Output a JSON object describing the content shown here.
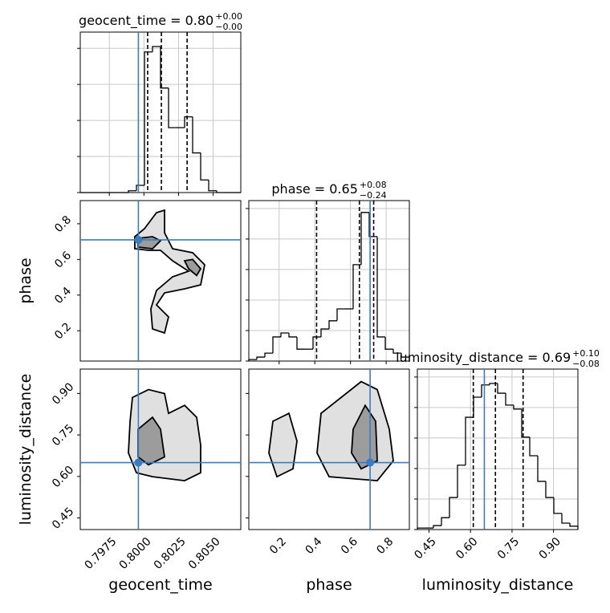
{
  "chart_data": {
    "type": "corner",
    "truth_color": "#3b7bbf",
    "hist_grid": true,
    "parameters": [
      {
        "name": "geocent_time",
        "title": "geocent_time = 0.80",
        "upper": "+0.00",
        "lower": "−0.00",
        "range": [
          0.7954,
          0.807
        ],
        "ticks": [
          0.7975,
          {
            "value": 0.8,
            "label": "0.8000"
          },
          0.8025,
          {
            "value": 0.805,
            "label": "0.8050"
          }
        ],
        "truth": 0.7996,
        "quantiles": [
          0.80027,
          0.80126,
          0.80312
        ],
        "bins": [
          0.7954,
          0.79598,
          0.79656,
          0.79714,
          0.79772,
          0.7983,
          0.79888,
          0.79946,
          0.80004,
          0.80062,
          0.8012,
          0.80178,
          0.80236,
          0.80294,
          0.80352,
          0.8041,
          0.80468,
          0.80526,
          0.80584,
          0.80642,
          0.807
        ],
        "counts": [
          0,
          0,
          0,
          0,
          0,
          0,
          0.05,
          0.2,
          3.9,
          4.05,
          2.9,
          1.8,
          1.8,
          2.1,
          1.1,
          0.35,
          0.05,
          0,
          0,
          0
        ],
        "hist_ylim": [
          0,
          4.45
        ],
        "hist_yticks": [
          0,
          1,
          2,
          3,
          4
        ]
      },
      {
        "name": "phase",
        "title": "phase = 0.65",
        "upper": "+0.08",
        "lower": "−0.24",
        "range": [
          0.03,
          0.93
        ],
        "ticks": [
          0.2,
          0.4,
          0.6,
          0.8
        ],
        "truth": 0.71,
        "quantiles": [
          0.41,
          0.65,
          0.73
        ],
        "bins": [
          0.03,
          0.075,
          0.12,
          0.165,
          0.21,
          0.255,
          0.3,
          0.345,
          0.39,
          0.435,
          0.48,
          0.525,
          0.57,
          0.615,
          0.66,
          0.705,
          0.75,
          0.795,
          0.84,
          0.885,
          0.93
        ],
        "counts": [
          0.05,
          0.13,
          0.26,
          0.79,
          0.92,
          0.79,
          0.39,
          0.39,
          0.79,
          1.05,
          1.32,
          1.71,
          1.71,
          3.16,
          4.87,
          4.08,
          0.79,
          0.39,
          0.26,
          0.13
        ],
        "hist_ylim": [
          0,
          5.26
        ],
        "hist_yticks": [
          0,
          1,
          2,
          3,
          4,
          5
        ]
      },
      {
        "name": "luminosity_distance",
        "title": "luminosity_distance = 0.69",
        "upper": "+0.10",
        "lower": "−0.08",
        "range": [
          0.408,
          0.988
        ],
        "ticks": [
          0.45,
          {
            "value": 0.6,
            "label": "0.60"
          },
          0.75,
          {
            "value": 0.9,
            "label": "0.90"
          }
        ],
        "truth": 0.65,
        "quantiles": [
          0.61,
          0.69,
          0.79
        ],
        "bins": [
          0.408,
          0.437,
          0.466,
          0.495,
          0.524,
          0.553,
          0.582,
          0.611,
          0.64,
          0.669,
          0.698,
          0.727,
          0.756,
          0.785,
          0.814,
          0.843,
          0.872,
          0.901,
          0.93,
          0.959,
          0.988
        ],
        "counts": [
          0.05,
          0.05,
          0.13,
          0.39,
          1.05,
          2.11,
          3.68,
          4.34,
          4.74,
          4.79,
          4.47,
          4.08,
          3.95,
          3.03,
          2.42,
          1.58,
          1.05,
          0.53,
          0.21,
          0.11
        ],
        "hist_ylim": [
          0,
          5.26
        ],
        "hist_yticks": [
          0,
          1,
          2,
          3,
          4,
          5
        ]
      }
    ],
    "pairs": [
      {
        "xparam": 0,
        "yparam": 1,
        "contours": [
          {
            "x": [
              0.79934,
              0.80004,
              0.80091,
              0.80149,
              0.80149,
              0.80207,
              0.80352,
              0.80439,
              0.8041,
              0.80294,
              0.80149,
              0.80091,
              0.80178,
              0.80149,
              0.80062,
              0.8005,
              0.80091,
              0.80207,
              0.80323,
              0.80207,
              0.8012,
              0.80033,
              0.79934
            ],
            "y": [
              0.7275,
              0.7725,
              0.8625,
              0.876,
              0.75,
              0.66,
              0.6375,
              0.57,
              0.4575,
              0.435,
              0.4125,
              0.345,
              0.2775,
              0.1875,
              0.21,
              0.3225,
              0.426,
              0.5025,
              0.534,
              0.5925,
              0.651,
              0.651,
              0.66
            ]
          },
          {
            "x": [
              0.79958,
              0.80062,
              0.8012,
              0.80062,
              0.79958,
              null,
              0.80294,
              0.80352,
              0.8041,
              0.80381,
              0.80323
            ],
            "y": [
              0.7185,
              0.7275,
              0.705,
              0.66,
              0.669,
              null,
              0.5925,
              0.6,
              0.5475,
              0.51,
              0.5475
            ]
          }
        ]
      },
      {
        "xparam": 0,
        "yparam": 2,
        "contours": [
          {
            "x": [
              0.79917,
              0.80033,
              0.80149,
              0.80178,
              0.80294,
              0.80381,
              0.8041,
              0.8041,
              0.80294,
              0.80062,
              0.79946,
              0.79888,
              0.799
            ],
            "y": [
              0.8854,
              0.914,
              0.8997,
              0.8281,
              0.8568,
              0.8138,
              0.7135,
              0.6132,
              0.5846,
              0.5989,
              0.6132,
              0.6849,
              0.7995
            ]
          },
          {
            "x": [
              0.79958,
              0.80062,
              0.8012,
              0.80149,
              0.80033,
              0.79958
            ],
            "y": [
              0.7708,
              0.8138,
              0.7708,
              0.6705,
              0.6419,
              0.6705
            ]
          }
        ]
      },
      {
        "xparam": 1,
        "yparam": 2,
        "contours": [
          {
            "x": [
              0.165,
              0.255,
              0.3,
              0.2775,
              0.1875,
              0.1425,
              null,
              0.435,
              0.66,
              0.75,
              0.8175,
              0.84,
              0.75,
              0.48,
              0.4125
            ],
            "y": [
              0.7995,
              0.8281,
              0.7278,
              0.6276,
              0.5989,
              0.6849,
              null,
              0.8281,
              0.9427,
              0.914,
              0.7708,
              0.6562,
              0.5846,
              0.5989,
              0.6849
            ]
          },
          {
            "x": [
              0.615,
              0.6825,
              0.741,
              0.75,
              0.66,
              0.606
            ],
            "y": [
              0.7708,
              0.8568,
              0.7995,
              0.6562,
              0.6276,
              0.6849
            ]
          }
        ]
      }
    ]
  }
}
